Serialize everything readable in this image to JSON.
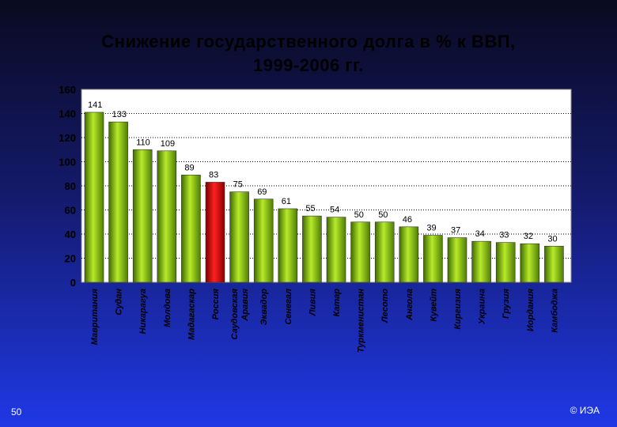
{
  "slide": {
    "title_line1": "Снижение государственного долга в % к ВВП,",
    "title_line2": "1999-2006 гг.",
    "page_number": "50",
    "copyright": "© ИЭА"
  },
  "chart_data": {
    "type": "bar",
    "title": "Снижение государственного долга в % к ВВП, 1999-2006 гг.",
    "xlabel": "",
    "ylabel": "",
    "ylim": [
      0,
      160
    ],
    "yticks": [
      0,
      20,
      40,
      60,
      80,
      100,
      120,
      140,
      160
    ],
    "grid": true,
    "categories": [
      "Мавритания",
      "Судан",
      "Никарагуа",
      "Молдова",
      "Мадагаскар",
      "Россия",
      "Саудовская Аравия",
      "Эквадор",
      "Сенегал",
      "Ливия",
      "Катар",
      "Туркменистан",
      "Лесото",
      "Ангола",
      "Кувейт",
      "Киргизия",
      "Украина",
      "Грузия",
      "Иордания",
      "Камбоджа"
    ],
    "category_lines": [
      [
        "Мавритания"
      ],
      [
        "Судан"
      ],
      [
        "Никарагуа"
      ],
      [
        "Молдова"
      ],
      [
        "Мадагаскар"
      ],
      [
        "Россия"
      ],
      [
        "Саудовская",
        "Аравия"
      ],
      [
        "Эквадор"
      ],
      [
        "Сенегал"
      ],
      [
        "Ливия"
      ],
      [
        "Катар"
      ],
      [
        "Туркменистан"
      ],
      [
        "Лесото"
      ],
      [
        "Ангола"
      ],
      [
        "Кувейт"
      ],
      [
        "Киргизия"
      ],
      [
        "Украина"
      ],
      [
        "Грузия"
      ],
      [
        "Иордания"
      ],
      [
        "Камбоджа"
      ]
    ],
    "values": [
      141,
      133,
      110,
      109,
      89,
      83,
      75,
      69,
      61,
      55,
      54,
      50,
      50,
      46,
      39,
      37,
      34,
      33,
      32,
      30
    ],
    "highlight_category": "Россия",
    "bar_color": "#7bb51a",
    "highlight_color": "#e00000"
  }
}
